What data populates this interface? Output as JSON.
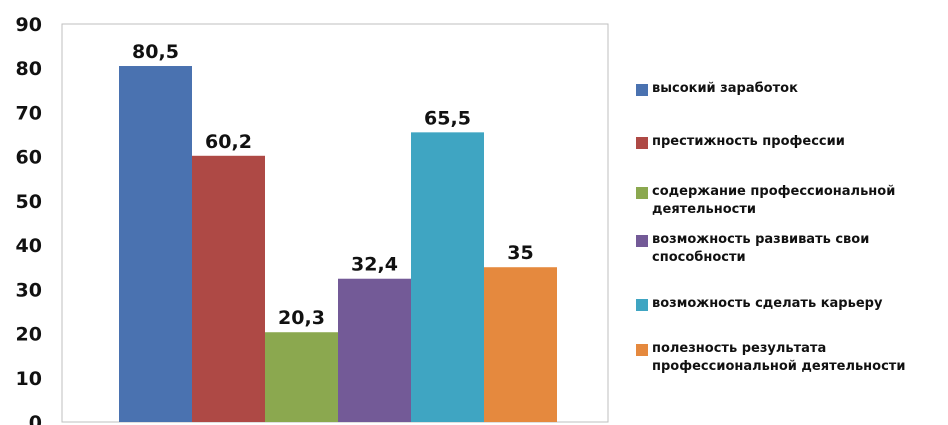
{
  "chart_data": {
    "type": "bar",
    "categories": [
      "высокий заработок",
      "престижность профессии",
      "содержание профессиональной деятельности",
      "возможность развивать свои способности",
      "возможность сделать карьеру",
      "полезность результата профессиональной деятельности"
    ],
    "values": [
      80.5,
      60.2,
      20.3,
      32.4,
      65.5,
      35
    ],
    "value_labels": [
      "80,5",
      "60,2",
      "20,3",
      "32,4",
      "65,5",
      "35"
    ],
    "colors": [
      "#4A72B0",
      "#AE4945",
      "#8BA84F",
      "#735A97",
      "#3FA5C2",
      "#E5893E"
    ],
    "ylim": [
      0,
      90
    ],
    "yticks": [
      "0",
      "10",
      "20",
      "30",
      "40",
      "50",
      "60",
      "70",
      "80",
      "90"
    ],
    "grid": false,
    "legend_position": "right",
    "title": "",
    "xlabel": "",
    "ylabel": ""
  }
}
